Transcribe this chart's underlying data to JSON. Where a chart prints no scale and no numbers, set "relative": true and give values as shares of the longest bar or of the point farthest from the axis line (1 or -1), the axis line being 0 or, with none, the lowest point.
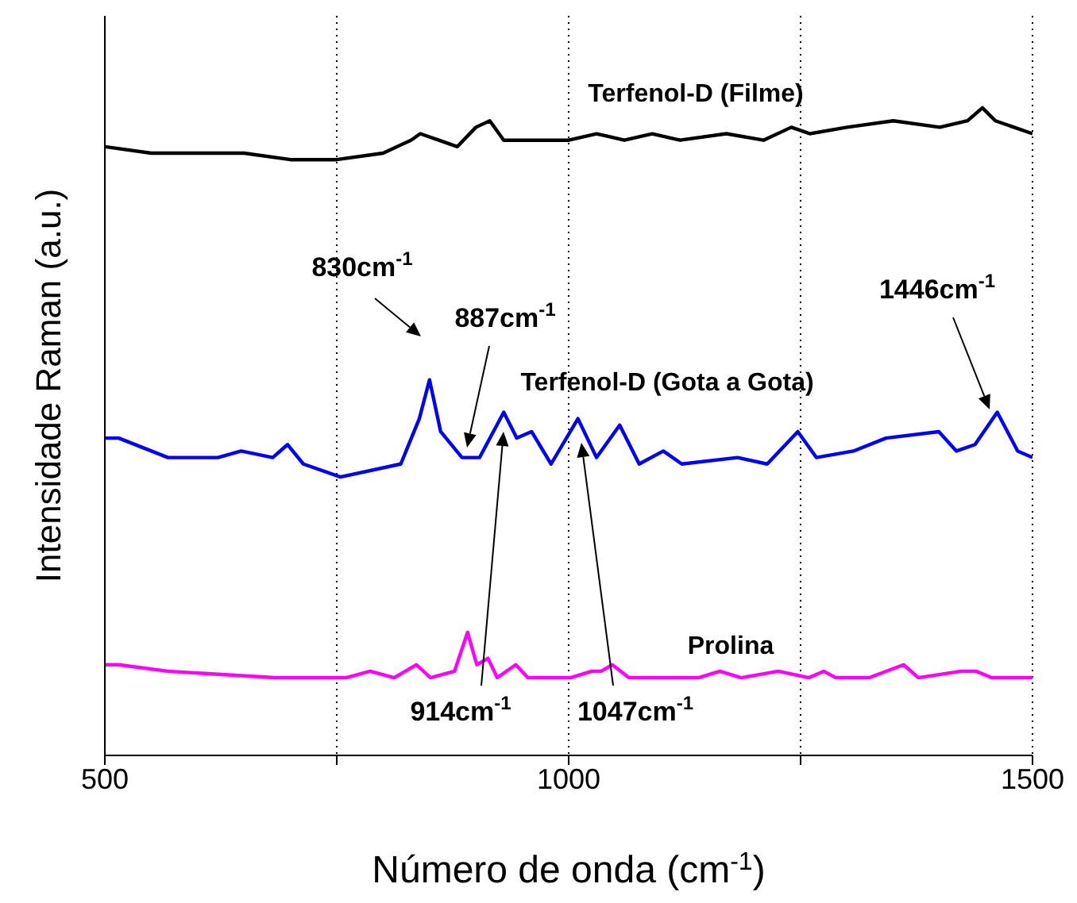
{
  "chart_data": {
    "type": "line",
    "relative": true,
    "xlabel": "Número de onda (cm$^{-1}$)",
    "ylabel": "Intensidade Raman (a.u.)",
    "xlim": [
      500,
      1500
    ],
    "xticks": [
      500,
      {
        "value": 750,
        "label": null
      },
      1000,
      {
        "value": 1250,
        "label": null
      },
      1500
    ],
    "grid": "x",
    "line_style": "solid",
    "series": [
      {
        "name": "Terfenol-D (Filme)",
        "color": "#000000",
        "x": [
          500,
          550,
          600,
          650,
          700,
          750,
          800,
          830,
          840,
          860,
          880,
          900,
          915,
          930,
          960,
          1000,
          1030,
          1060,
          1090,
          1120,
          1170,
          1210,
          1240,
          1260,
          1300,
          1350,
          1400,
          1430,
          1446,
          1460,
          1480,
          1500
        ],
        "values": [
          0.94,
          0.93,
          0.93,
          0.93,
          0.92,
          0.92,
          0.93,
          0.95,
          0.96,
          0.95,
          0.94,
          0.97,
          0.98,
          0.95,
          0.95,
          0.95,
          0.96,
          0.95,
          0.96,
          0.95,
          0.96,
          0.95,
          0.97,
          0.96,
          0.97,
          0.98,
          0.97,
          0.98,
          1,
          0.98,
          0.97,
          0.96
        ]
      },
      {
        "name": "Terfenol-D (Gota a Gota)",
        "color": "#0000ff",
        "x": [
          500,
          515,
          568,
          622,
          647,
          681,
          697,
          714,
          754,
          819,
          839,
          850,
          862,
          885,
          904,
          930,
          944,
          960,
          981,
          1010,
          1030,
          1055,
          1076,
          1102,
          1122,
          1182,
          1214,
          1247,
          1267,
          1307,
          1342,
          1399,
          1418,
          1438,
          1462,
          1484,
          1500
        ],
        "values": [
          0.49,
          0.49,
          0.46,
          0.46,
          0.47,
          0.46,
          0.48,
          0.45,
          0.43,
          0.45,
          0.52,
          0.58,
          0.5,
          0.46,
          0.46,
          0.53,
          0.49,
          0.5,
          0.45,
          0.52,
          0.46,
          0.51,
          0.45,
          0.47,
          0.45,
          0.46,
          0.45,
          0.5,
          0.46,
          0.47,
          0.49,
          0.5,
          0.47,
          0.48,
          0.53,
          0.47,
          0.46
        ]
      },
      {
        "name": "Prolina",
        "color": "#ff00ff",
        "x": [
          500,
          515,
          568,
          683,
          760,
          786,
          812,
          836,
          851,
          877,
          891,
          901,
          913,
          923,
          943,
          956,
          1002,
          1025,
          1035,
          1047,
          1065,
          1140,
          1163,
          1186,
          1226,
          1259,
          1275,
          1288,
          1324,
          1361,
          1377,
          1423,
          1439,
          1456,
          1500
        ],
        "values": [
          0.14,
          0.14,
          0.13,
          0.12,
          0.12,
          0.13,
          0.12,
          0.14,
          0.12,
          0.13,
          0.19,
          0.14,
          0.15,
          0.12,
          0.14,
          0.12,
          0.12,
          0.13,
          0.13,
          0.14,
          0.12,
          0.12,
          0.13,
          0.12,
          0.13,
          0.12,
          0.13,
          0.12,
          0.12,
          0.14,
          0.12,
          0.13,
          0.13,
          0.12,
          0.12
        ]
      }
    ],
    "annotations": [
      "830cm$^{-1}$",
      "887cm$^{-1}$",
      "914cm$^{-1}$",
      "1047cm$^{-1}$",
      "1446cm$^{-1}$"
    ]
  }
}
